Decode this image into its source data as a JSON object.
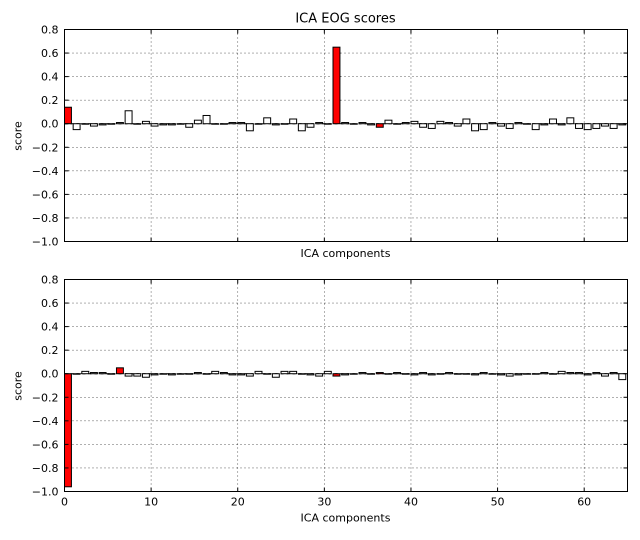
{
  "chart_data": [
    {
      "type": "bar",
      "title": "ICA EOG scores",
      "xlabel": "ICA components",
      "ylabel": "score",
      "xlim": [
        0,
        65
      ],
      "ylim": [
        -1.0,
        0.8
      ],
      "xticks": [
        0,
        10,
        20,
        30,
        40,
        50,
        60
      ],
      "yticks": [
        0.8,
        0.6,
        0.4,
        0.2,
        0.0,
        -0.2,
        -0.4,
        -0.6,
        -0.8,
        -1.0
      ],
      "ytick_labels": [
        "0.8",
        "0.6",
        "0.4",
        "0.2",
        "0.0",
        "−0.2",
        "−0.4",
        "−0.6",
        "−0.8",
        "−1.0"
      ],
      "show_xtick_labels": false,
      "grid": true,
      "highlight_color": "#ff0000",
      "default_color": "#ffffff",
      "highlighted_components": [
        0,
        31,
        36
      ],
      "values": [
        0.14,
        -0.05,
        0.0,
        -0.02,
        -0.01,
        0.0,
        0.01,
        0.11,
        0.0,
        0.02,
        -0.02,
        -0.01,
        -0.01,
        0.0,
        -0.03,
        0.03,
        0.07,
        0.0,
        0.0,
        0.01,
        0.01,
        -0.06,
        0.0,
        0.05,
        -0.01,
        0.0,
        0.04,
        -0.06,
        -0.03,
        0.01,
        0.0,
        0.65,
        0.01,
        0.0,
        0.01,
        -0.01,
        -0.03,
        0.03,
        0.0,
        0.01,
        0.02,
        -0.03,
        -0.04,
        0.02,
        0.01,
        -0.02,
        0.04,
        -0.06,
        -0.05,
        0.01,
        -0.02,
        -0.04,
        0.01,
        0.0,
        -0.05,
        -0.01,
        0.04,
        -0.01,
        0.05,
        -0.04,
        -0.05,
        -0.04,
        -0.02,
        -0.04,
        -0.01
      ]
    },
    {
      "type": "bar",
      "title": "",
      "xlabel": "ICA components",
      "ylabel": "score",
      "xlim": [
        0,
        65
      ],
      "ylim": [
        -1.0,
        0.8
      ],
      "xticks": [
        0,
        10,
        20,
        30,
        40,
        50,
        60
      ],
      "xtick_labels": [
        "0",
        "10",
        "20",
        "30",
        "40",
        "50",
        "60"
      ],
      "yticks": [
        0.8,
        0.6,
        0.4,
        0.2,
        0.0,
        -0.2,
        -0.4,
        -0.6,
        -0.8,
        -1.0
      ],
      "ytick_labels": [
        "0.8",
        "0.6",
        "0.4",
        "0.2",
        "0.0",
        "−0.2",
        "−0.4",
        "−0.6",
        "−0.8",
        "−1.0"
      ],
      "show_xtick_labels": true,
      "grid": true,
      "highlight_color": "#ff0000",
      "default_color": "#ffffff",
      "highlighted_components": [
        0,
        6,
        31,
        36
      ],
      "values": [
        -0.96,
        0.0,
        0.02,
        0.01,
        0.01,
        0.0,
        0.05,
        -0.02,
        -0.02,
        -0.03,
        -0.01,
        0.0,
        -0.01,
        0.0,
        0.0,
        0.01,
        0.0,
        0.02,
        0.01,
        -0.01,
        -0.01,
        -0.02,
        0.02,
        0.0,
        -0.03,
        0.02,
        0.02,
        0.0,
        -0.01,
        -0.02,
        0.02,
        -0.02,
        -0.01,
        0.0,
        0.01,
        0.0,
        0.01,
        0.0,
        0.01,
        0.0,
        -0.01,
        0.01,
        -0.01,
        0.0,
        0.01,
        0.0,
        0.0,
        -0.01,
        0.01,
        0.0,
        -0.01,
        -0.02,
        -0.01,
        0.0,
        0.0,
        0.01,
        0.0,
        0.02,
        0.01,
        0.01,
        -0.01,
        0.01,
        -0.02,
        0.01,
        -0.05
      ]
    }
  ]
}
